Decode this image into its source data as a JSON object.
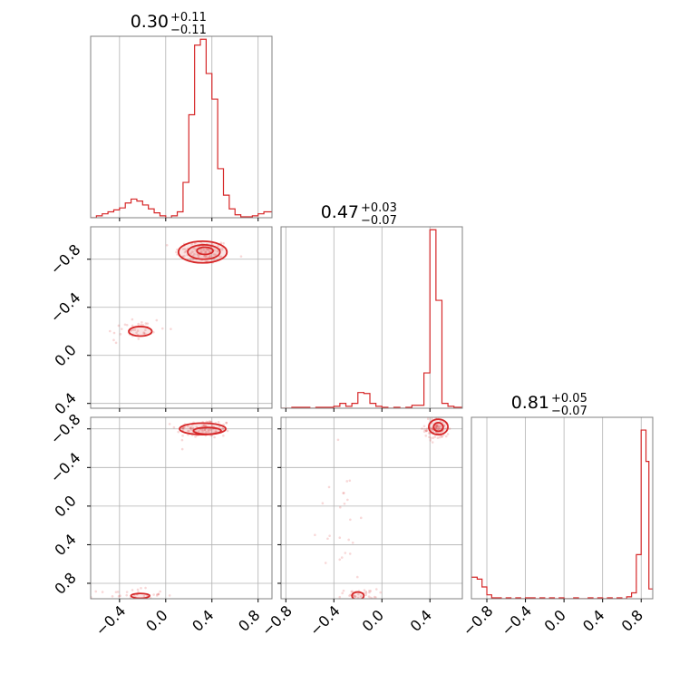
{
  "chart_data": {
    "type": "corner",
    "color": "#d62728",
    "panels": [
      {
        "id": "hist-0",
        "row": 0,
        "col": 0,
        "type": "histogram",
        "title": {
          "main": "0.30",
          "plus": "+0.11",
          "minus": "−0.11"
        },
        "xlim": [
          -0.65,
          0.92
        ],
        "ylim": [
          0,
          185
        ],
        "grid_x": [
          -0.4,
          0.0,
          0.4,
          0.8
        ],
        "bins_x": [
          -0.65,
          -0.6,
          -0.55,
          -0.5,
          -0.45,
          -0.4,
          -0.35,
          -0.3,
          -0.25,
          -0.2,
          -0.15,
          -0.1,
          -0.05,
          0.0,
          0.05,
          0.1,
          0.15,
          0.2,
          0.25,
          0.3,
          0.35,
          0.4,
          0.45,
          0.5,
          0.55,
          0.6,
          0.65,
          0.7,
          0.75,
          0.8,
          0.85,
          0.92
        ],
        "counts": [
          0,
          2,
          4,
          6,
          8,
          10,
          15,
          19,
          17,
          13,
          9,
          5,
          2,
          0,
          2,
          6,
          36,
          105,
          176,
          182,
          147,
          121,
          50,
          23,
          9,
          3,
          1,
          1,
          2,
          4,
          6
        ]
      },
      {
        "id": "scatter-1-0",
        "row": 1,
        "col": 0,
        "type": "scatter2d",
        "xlim": [
          -0.65,
          0.92
        ],
        "ylim": [
          -0.84,
          0.67
        ],
        "grid_x": [
          -0.4,
          0.0,
          0.4,
          0.8
        ],
        "grid_y": [
          -0.8,
          -0.4,
          0.0,
          0.4
        ],
        "clusters": [
          {
            "x": 0.32,
            "y": 0.46,
            "sx": 0.12,
            "sy": 0.05,
            "n": 90
          },
          {
            "x": -0.28,
            "y": -0.19,
            "sx": 0.14,
            "sy": 0.06,
            "n": 40
          }
        ],
        "contours": [
          {
            "x": 0.32,
            "y": 0.46,
            "rx": 0.21,
            "ry": 0.09
          },
          {
            "x": 0.33,
            "y": 0.46,
            "rx": 0.14,
            "ry": 0.06
          },
          {
            "x": 0.34,
            "y": 0.47,
            "rx": 0.07,
            "ry": 0.03
          },
          {
            "x": -0.22,
            "y": -0.2,
            "rx": 0.1,
            "ry": 0.04
          }
        ]
      },
      {
        "id": "hist-1",
        "row": 1,
        "col": 1,
        "type": "histogram",
        "title": {
          "main": "0.47",
          "plus": "+0.03",
          "minus": "−0.07"
        },
        "xlim": [
          -0.84,
          0.67
        ],
        "ylim": [
          0,
          185
        ],
        "grid_x": [
          -0.8,
          -0.4,
          0.0,
          0.4
        ],
        "bins_x": [
          -0.84,
          -0.8,
          -0.75,
          -0.7,
          -0.65,
          -0.6,
          -0.55,
          -0.5,
          -0.45,
          -0.4,
          -0.35,
          -0.3,
          -0.25,
          -0.2,
          -0.15,
          -0.1,
          -0.05,
          0.0,
          0.05,
          0.1,
          0.15,
          0.2,
          0.25,
          0.3,
          0.35,
          0.4,
          0.45,
          0.5,
          0.55,
          0.6,
          0.67
        ],
        "counts": [
          0,
          0,
          1,
          1,
          1,
          0,
          1,
          1,
          1,
          2,
          5,
          2,
          5,
          16,
          15,
          5,
          2,
          1,
          0,
          1,
          0,
          1,
          3,
          3,
          36,
          182,
          110,
          5,
          2,
          1
        ]
      },
      {
        "id": "scatter-2-0",
        "row": 2,
        "col": 0,
        "type": "scatter2d",
        "xlim": [
          -0.65,
          0.92
        ],
        "ylim": [
          -0.96,
          0.92
        ],
        "grid_x": [
          -0.4,
          0.0,
          0.4,
          0.8
        ],
        "grid_y": [
          -0.8,
          -0.4,
          0.0,
          0.4,
          0.8
        ],
        "clusters": [
          {
            "x": 0.33,
            "y": 0.8,
            "sx": 0.12,
            "sy": 0.05,
            "n": 90
          },
          {
            "x": -0.3,
            "y": -0.92,
            "sx": 0.14,
            "sy": 0.03,
            "n": 35
          }
        ],
        "contours": [
          {
            "x": 0.32,
            "y": 0.8,
            "rx": 0.2,
            "ry": 0.06
          },
          {
            "x": 0.36,
            "y": 0.78,
            "rx": 0.12,
            "ry": 0.035
          },
          {
            "x": -0.22,
            "y": -0.93,
            "rx": 0.08,
            "ry": 0.025
          }
        ]
      },
      {
        "id": "scatter-2-1",
        "row": 2,
        "col": 1,
        "type": "scatter2d",
        "xlim": [
          -0.84,
          0.67
        ],
        "ylim": [
          -0.96,
          0.92
        ],
        "grid_x": [
          -0.8,
          -0.4,
          0.0,
          0.4
        ],
        "grid_y": [
          -0.8,
          -0.4,
          0.0,
          0.4,
          0.8
        ],
        "clusters": [
          {
            "x": 0.46,
            "y": 0.8,
            "sx": 0.05,
            "sy": 0.06,
            "n": 90
          },
          {
            "x": -0.2,
            "y": -0.92,
            "sx": 0.08,
            "sy": 0.03,
            "n": 35
          },
          {
            "x": -0.35,
            "y": -0.2,
            "sx": 0.12,
            "sy": 0.35,
            "n": 25
          }
        ],
        "contours": [
          {
            "x": 0.47,
            "y": 0.82,
            "rx": 0.08,
            "ry": 0.08
          },
          {
            "x": 0.47,
            "y": 0.82,
            "rx": 0.04,
            "ry": 0.045
          },
          {
            "x": -0.2,
            "y": -0.93,
            "rx": 0.05,
            "ry": 0.04
          }
        ]
      },
      {
        "id": "hist-2",
        "row": 2,
        "col": 2,
        "type": "histogram",
        "title": {
          "main": "0.81",
          "plus": "+0.05",
          "minus": "−0.07"
        },
        "xlim": [
          -0.96,
          0.92
        ],
        "ylim": [
          0,
          185
        ],
        "grid_x": [
          -0.8,
          -0.4,
          0.0,
          0.4,
          0.8
        ],
        "bins_x": [
          -0.96,
          -0.9,
          -0.85,
          -0.8,
          -0.75,
          -0.7,
          -0.65,
          -0.6,
          -0.55,
          -0.5,
          -0.45,
          -0.4,
          -0.35,
          -0.3,
          -0.25,
          -0.2,
          -0.15,
          -0.1,
          -0.05,
          0.0,
          0.05,
          0.1,
          0.15,
          0.2,
          0.25,
          0.3,
          0.35,
          0.4,
          0.45,
          0.5,
          0.55,
          0.6,
          0.65,
          0.7,
          0.75,
          0.8,
          0.85,
          0.88,
          0.92
        ],
        "counts": [
          22,
          20,
          12,
          4,
          1,
          1,
          0,
          1,
          0,
          1,
          0,
          1,
          1,
          0,
          1,
          0,
          1,
          0,
          1,
          0,
          0,
          1,
          0,
          0,
          1,
          0,
          1,
          0,
          1,
          0,
          1,
          0,
          2,
          6,
          45,
          172,
          140,
          10
        ]
      }
    ],
    "row_tick_labels": {
      "row1": [
        "0.4",
        "0.0",
        "−0.4",
        "−0.8"
      ],
      "row2": [
        "0.8",
        "0.4",
        "0.0",
        "−0.4",
        "−0.8"
      ]
    },
    "col_tick_labels": {
      "col0": [
        "−0.4",
        "0.0",
        "0.4",
        "0.8"
      ],
      "col1": [
        "−0.8",
        "−0.4",
        "0.0",
        "0.4"
      ],
      "col2": [
        "−0.8",
        "−0.4",
        "0.0",
        "0.4",
        "0.8"
      ]
    }
  }
}
